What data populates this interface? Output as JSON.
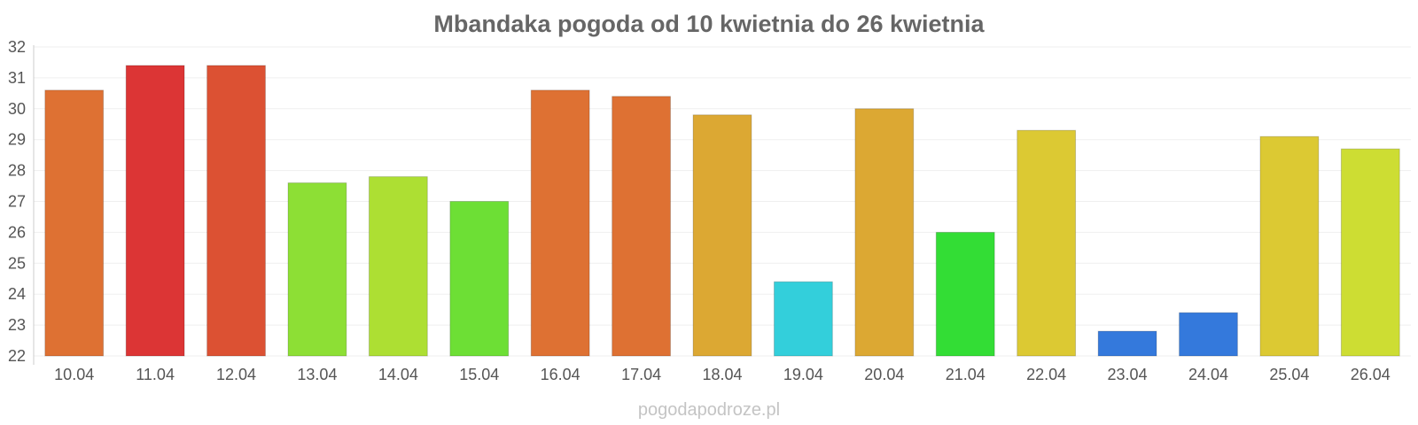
{
  "chart_data": {
    "type": "bar",
    "title": "Mbandaka pogoda od 10 kwietnia do 26 kwietnia",
    "xlabel": "",
    "ylabel": "",
    "ylim": [
      22,
      32
    ],
    "yticks": [
      "22",
      "23",
      "24",
      "25",
      "26",
      "27",
      "28",
      "29",
      "30",
      "31",
      "32"
    ],
    "grid": true,
    "categories": [
      "10.04",
      "11.04",
      "12.04",
      "13.04",
      "14.04",
      "15.04",
      "16.04",
      "17.04",
      "18.04",
      "19.04",
      "20.04",
      "21.04",
      "22.04",
      "23.04",
      "24.04",
      "25.04",
      "26.04"
    ],
    "values": [
      30.6,
      31.4,
      31.4,
      27.6,
      27.8,
      27.0,
      30.6,
      30.4,
      29.8,
      24.4,
      30.0,
      26.0,
      29.3,
      22.8,
      23.4,
      29.1,
      28.7
    ],
    "colors": [
      "#de7133",
      "#dc3535",
      "#dc5133",
      "#8ddf35",
      "#addf33",
      "#6ddf35",
      "#de7133",
      "#de7133",
      "#dca833",
      "#33cfdb",
      "#dca833",
      "#33dd35",
      "#dcc933",
      "#3479dc",
      "#3479dc",
      "#dcc933",
      "#cddd33"
    ]
  },
  "watermark": "pogodapodroze.pl"
}
